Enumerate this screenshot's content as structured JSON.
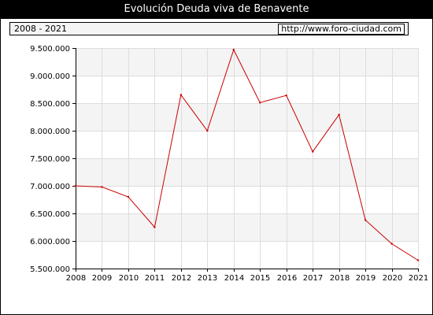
{
  "title": "Evolución Deuda viva de Benavente",
  "period": "2008 - 2021",
  "source_url": "http://www.foro-ciudad.com",
  "chart_data": {
    "type": "line",
    "title": "Evolución Deuda viva de Benavente",
    "xlabel": "",
    "ylabel": "",
    "x": [
      2008,
      2009,
      2010,
      2011,
      2012,
      2013,
      2014,
      2015,
      2016,
      2017,
      2018,
      2019,
      2020,
      2021
    ],
    "series": [
      {
        "values": [
          7000000,
          6980000,
          6800000,
          6250000,
          8650000,
          8000000,
          9470000,
          8510000,
          8640000,
          7620000,
          8290000,
          6380000,
          5950000,
          5650000
        ],
        "color": "#cc0000"
      }
    ],
    "xlim": [
      2008,
      2021
    ],
    "ylim": [
      5500000,
      9500000
    ],
    "yticks": [
      5500000,
      6000000,
      6500000,
      7000000,
      7500000,
      8000000,
      8500000,
      9000000,
      9500000
    ],
    "ytick_labels": [
      "5.500.000",
      "6.000.000",
      "6.500.000",
      "7.000.000",
      "7.500.000",
      "8.000.000",
      "8.500.000",
      "9.000.000",
      "9.500.000"
    ],
    "xtick_labels": [
      "2008",
      "2009",
      "2010",
      "2011",
      "2012",
      "2013",
      "2014",
      "2015",
      "2016",
      "2017",
      "2018",
      "2019",
      "2020",
      "2021"
    ],
    "grid": true,
    "band_color": "#f4f4f4",
    "grid_color": "#dddddd"
  }
}
